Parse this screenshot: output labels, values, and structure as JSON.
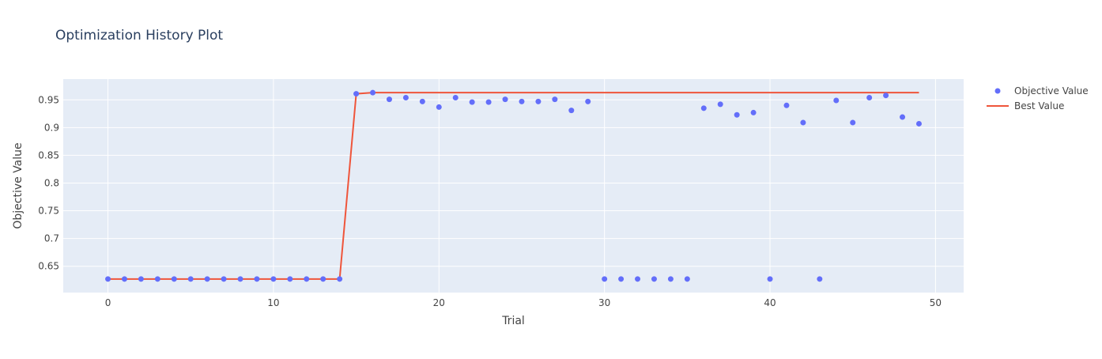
{
  "chart_data": {
    "type": "scatter",
    "title": "Optimization History Plot",
    "xlabel": "Trial",
    "ylabel": "Objective Value",
    "xlim": [
      -2.7,
      51.7
    ],
    "ylim": [
      0.6025,
      0.9875
    ],
    "x_ticks": [
      0,
      10,
      20,
      30,
      40,
      50
    ],
    "y_ticks": [
      0.65,
      0.7,
      0.75,
      0.8,
      0.85,
      0.9,
      0.95
    ],
    "y_tick_labels": [
      "0.65",
      "0.7",
      "0.75",
      "0.8",
      "0.85",
      "0.9",
      "0.95"
    ],
    "grid": true,
    "legend_position": "top-right",
    "series": [
      {
        "name": "Objective Value",
        "kind": "markers",
        "color": "#636efa",
        "x": [
          0,
          1,
          2,
          3,
          4,
          5,
          6,
          7,
          8,
          9,
          10,
          11,
          12,
          13,
          14,
          15,
          16,
          17,
          18,
          19,
          20,
          21,
          22,
          23,
          24,
          25,
          26,
          27,
          28,
          29,
          30,
          31,
          32,
          33,
          34,
          35,
          36,
          37,
          38,
          39,
          40,
          41,
          42,
          43,
          44,
          45,
          46,
          47,
          48,
          49
        ],
        "y": [
          0.627,
          0.627,
          0.627,
          0.627,
          0.627,
          0.627,
          0.627,
          0.627,
          0.627,
          0.627,
          0.627,
          0.627,
          0.627,
          0.627,
          0.627,
          0.961,
          0.963,
          0.951,
          0.954,
          0.947,
          0.937,
          0.954,
          0.946,
          0.946,
          0.951,
          0.947,
          0.947,
          0.951,
          0.931,
          0.947,
          0.627,
          0.627,
          0.627,
          0.627,
          0.627,
          0.627,
          0.935,
          0.942,
          0.923,
          0.927,
          0.627,
          0.94,
          0.909,
          0.627,
          0.949,
          0.909,
          0.954,
          0.958,
          0.919,
          0.907
        ]
      },
      {
        "name": "Best Value",
        "kind": "line",
        "color": "#ef553b",
        "x": [
          0,
          1,
          2,
          3,
          4,
          5,
          6,
          7,
          8,
          9,
          10,
          11,
          12,
          13,
          14,
          15,
          16,
          17,
          18,
          19,
          20,
          21,
          22,
          23,
          24,
          25,
          26,
          27,
          28,
          29,
          30,
          31,
          32,
          33,
          34,
          35,
          36,
          37,
          38,
          39,
          40,
          41,
          42,
          43,
          44,
          45,
          46,
          47,
          48,
          49
        ],
        "y": [
          0.627,
          0.627,
          0.627,
          0.627,
          0.627,
          0.627,
          0.627,
          0.627,
          0.627,
          0.627,
          0.627,
          0.627,
          0.627,
          0.627,
          0.627,
          0.961,
          0.963,
          0.963,
          0.963,
          0.963,
          0.963,
          0.963,
          0.963,
          0.963,
          0.963,
          0.963,
          0.963,
          0.963,
          0.963,
          0.963,
          0.963,
          0.963,
          0.963,
          0.963,
          0.963,
          0.963,
          0.963,
          0.963,
          0.963,
          0.963,
          0.963,
          0.963,
          0.963,
          0.963,
          0.963,
          0.963,
          0.963,
          0.963,
          0.963,
          0.963
        ]
      }
    ],
    "colors": {
      "plot_bg": "#e5ecf6",
      "grid": "#ffffff",
      "text": "#444444",
      "title": "#2a3f5f"
    }
  }
}
